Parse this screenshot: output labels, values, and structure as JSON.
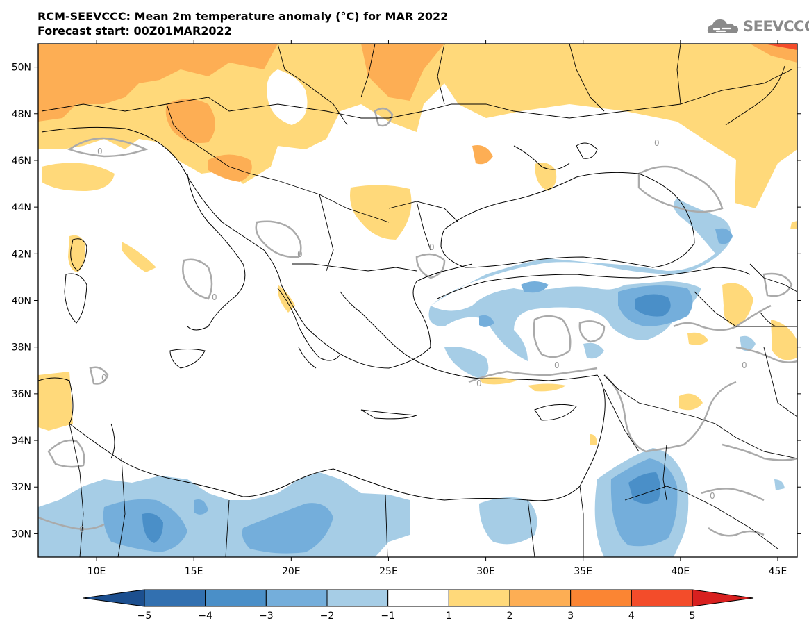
{
  "header": {
    "title": "RCM-SEEVCCC: Mean 2m temperature anomaly (°C) for MAR 2022",
    "subtitle": "Forecast start: 00Z01MAR2022"
  },
  "logo": {
    "text": "SEEVCCC",
    "icon": "cloud-icon"
  },
  "map": {
    "lat_range": [
      29,
      51
    ],
    "lon_range": [
      7,
      46
    ],
    "lat_labels": [
      "50N",
      "48N",
      "46N",
      "44N",
      "42N",
      "40N",
      "38N",
      "36N",
      "34N",
      "32N",
      "30N"
    ],
    "lon_labels": [
      "10E",
      "15E",
      "20E",
      "25E",
      "30E",
      "35E",
      "40E",
      "45E"
    ],
    "contour_label": "0"
  },
  "colorbar": {
    "labels": [
      "−5",
      "−4",
      "−3",
      "−2",
      "−1",
      "1",
      "2",
      "3",
      "4",
      "5"
    ],
    "colors": [
      "#1c4f8f",
      "#3270b0",
      "#4a8fc8",
      "#74aedb",
      "#a6cde6",
      "#ffffff",
      "#ffd97a",
      "#fdae54",
      "#fb8533",
      "#f34c2a",
      "#d8201f"
    ]
  },
  "colors": {
    "land_border": "#000000",
    "contour_line": "#aaaaaa",
    "ocean": "#ffffff"
  }
}
